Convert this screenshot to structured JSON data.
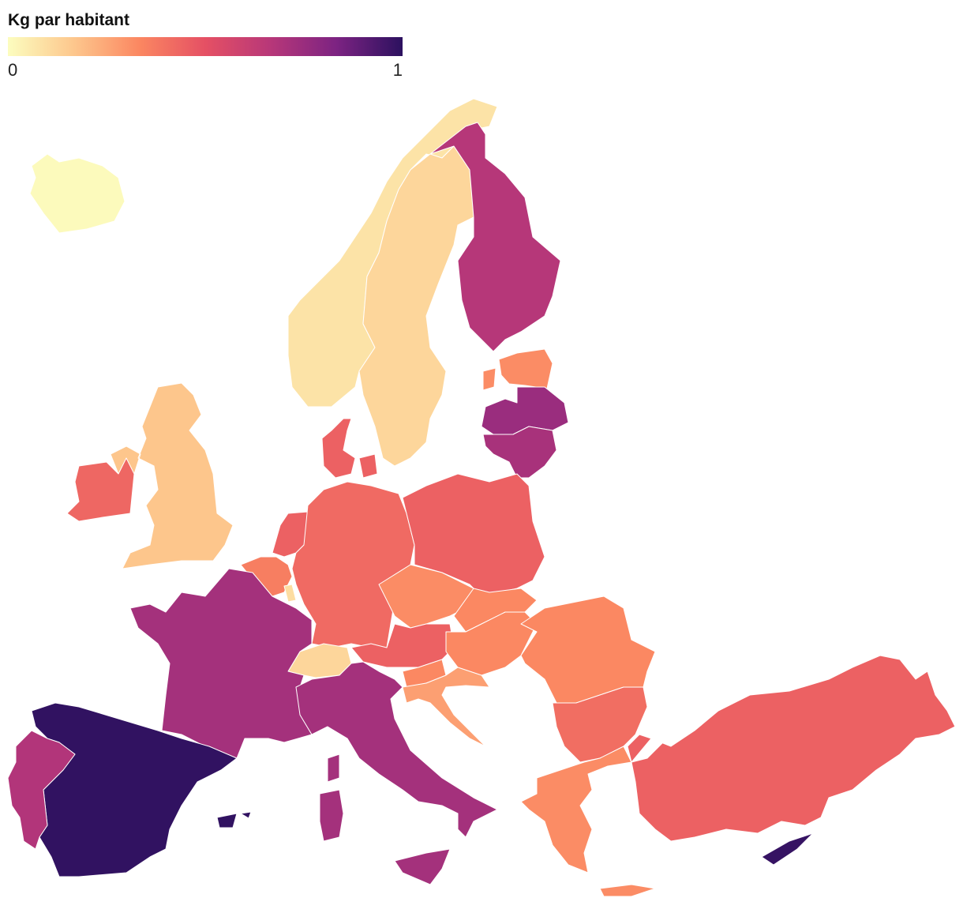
{
  "chart_data": {
    "type": "choropleth",
    "title": "Kg par habitant",
    "lim": [
      0,
      1
    ],
    "ticks": [
      0,
      1
    ],
    "colorscale": [
      "#fcfdbf",
      "#fdc78d",
      "#fb8761",
      "#e55064",
      "#b73779",
      "#7c2382",
      "#2c115f"
    ],
    "values": [
      0.01,
      0.08,
      0.12,
      0.67,
      0.32,
      0.75,
      0.71,
      0.45,
      0.17,
      0.43,
      0.45,
      0.36,
      0.1,
      0.42,
      0.45,
      0.32,
      0.33,
      0.45,
      0.12,
      0.33,
      0.72,
      0.99,
      0.68,
      0.72,
      0.33,
      0.27,
      0.33,
      0.41,
      0.32,
      0.45,
      0.98
    ]
  }
}
